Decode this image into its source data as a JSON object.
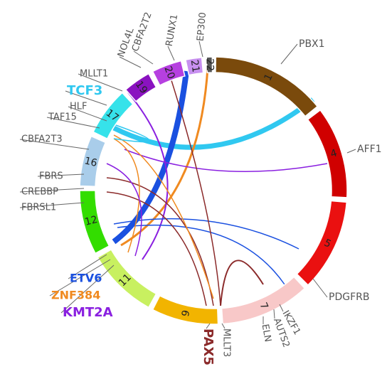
{
  "segments": [
    {
      "label": "1",
      "color": "#7a4a0c"
    },
    {
      "label": "4",
      "color": "#d00000"
    },
    {
      "label": "5",
      "color": "#ea1010"
    },
    {
      "label": "7",
      "color": "#f8c8c8"
    },
    {
      "label": "9",
      "color": "#f2b400"
    },
    {
      "label": "11",
      "color": "#c8f060"
    },
    {
      "label": "12",
      "color": "#33dd00"
    },
    {
      "label": "16",
      "color": "#a9cdea"
    },
    {
      "label": "17",
      "color": "#36e2ea"
    },
    {
      "label": "19",
      "color": "#8a12c0"
    },
    {
      "label": "20",
      "color": "#b640e0"
    },
    {
      "label": "21",
      "color": "#c890f0"
    },
    {
      "label": "22",
      "color": "#555555"
    }
  ],
  "genes": [
    {
      "label": "PBX1",
      "color": "#555555"
    },
    {
      "label": "AFF1",
      "color": "#555555"
    },
    {
      "label": "PDGFRB",
      "color": "#555555"
    },
    {
      "label": "IKZF1",
      "color": "#555555"
    },
    {
      "label": "AUTS2",
      "color": "#555555"
    },
    {
      "label": "ELN",
      "color": "#555555"
    },
    {
      "label": "MLLT3",
      "color": "#555555"
    },
    {
      "label": "PAX5",
      "color": "#8b2a2a"
    },
    {
      "label": "KMT2A",
      "color": "#8a20e0"
    },
    {
      "label": "ZNF384",
      "color": "#f08a20"
    },
    {
      "label": "ETV6",
      "color": "#1a50e0"
    },
    {
      "label": "FBRSL1",
      "color": "#555555"
    },
    {
      "label": "CREBBP",
      "color": "#555555"
    },
    {
      "label": "FBRS",
      "color": "#555555"
    },
    {
      "label": "CBFA2T3",
      "color": "#555555"
    },
    {
      "label": "TAF15",
      "color": "#555555"
    },
    {
      "label": "HLF",
      "color": "#555555"
    },
    {
      "label": "TCF3",
      "color": "#30c8f0"
    },
    {
      "label": "MLLT1",
      "color": "#555555"
    },
    {
      "label": "NOL4L",
      "color": "#555555"
    },
    {
      "label": "CBFA2T2",
      "color": "#555555"
    },
    {
      "label": "RUNX1",
      "color": "#555555"
    },
    {
      "label": "EP300",
      "color": "#555555"
    }
  ]
}
